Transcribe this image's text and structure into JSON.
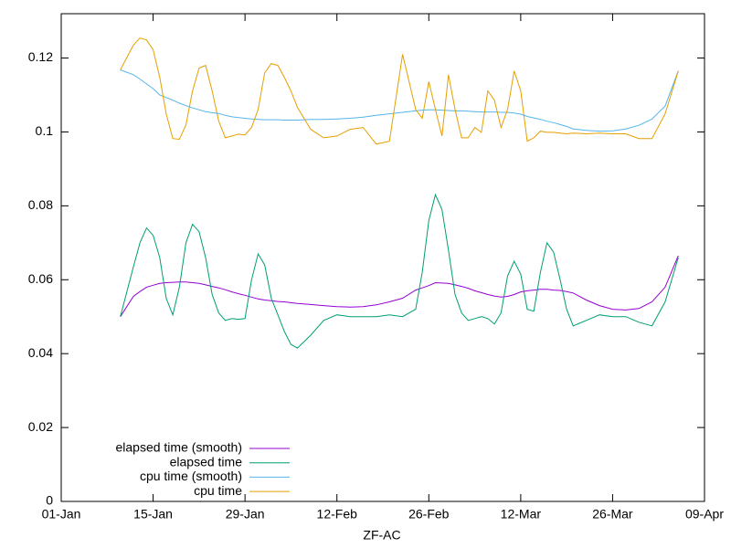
{
  "chart_data": {
    "type": "line",
    "xlabel": "ZF-AC",
    "x": [
      "10-Jan",
      "12-Jan",
      "13-Jan",
      "14-Jan",
      "15-Jan",
      "16-Jan",
      "17-Jan",
      "18-Jan",
      "19-Jan",
      "20-Jan",
      "21-Jan",
      "22-Jan",
      "23-Jan",
      "24-Jan",
      "25-Jan",
      "26-Jan",
      "27-Jan",
      "28-Jan",
      "29-Jan",
      "30-Jan",
      "31-Jan",
      "01-Feb",
      "02-Feb",
      "03-Feb",
      "04-Feb",
      "05-Feb",
      "06-Feb",
      "08-Feb",
      "10-Feb",
      "12-Feb",
      "14-Feb",
      "16-Feb",
      "18-Feb",
      "20-Feb",
      "22-Feb",
      "24-Feb",
      "25-Feb",
      "26-Feb",
      "27-Feb",
      "28-Feb",
      "01-Mar",
      "02-Mar",
      "03-Mar",
      "04-Mar",
      "05-Mar",
      "06-Mar",
      "07-Mar",
      "08-Mar",
      "09-Mar",
      "10-Mar",
      "11-Mar",
      "12-Mar",
      "13-Mar",
      "14-Mar",
      "15-Mar",
      "16-Mar",
      "17-Mar",
      "18-Mar",
      "19-Mar",
      "20-Mar",
      "22-Mar",
      "24-Mar",
      "26-Mar",
      "28-Mar",
      "30-Mar",
      "01-Apr",
      "03-Apr",
      "05-Apr"
    ],
    "series": [
      {
        "name": "elapsed time (smooth)",
        "color": "#9400d3",
        "values": [
          0.05,
          0.0555,
          0.0568,
          0.058,
          0.0585,
          0.059,
          0.0592,
          0.0593,
          0.0594,
          0.0594,
          0.0592,
          0.059,
          0.0586,
          0.0582,
          0.0578,
          0.0573,
          0.0567,
          0.0562,
          0.0558,
          0.0553,
          0.0548,
          0.0545,
          0.0543,
          0.0541,
          0.054,
          0.0538,
          0.0536,
          0.0533,
          0.053,
          0.0527,
          0.0526,
          0.0527,
          0.0532,
          0.054,
          0.055,
          0.0572,
          0.0578,
          0.0584,
          0.0592,
          0.0591,
          0.059,
          0.0586,
          0.0582,
          0.0577,
          0.057,
          0.0565,
          0.056,
          0.0556,
          0.0553,
          0.0555,
          0.056,
          0.0567,
          0.057,
          0.0572,
          0.0574,
          0.0574,
          0.0572,
          0.0571,
          0.0568,
          0.0564,
          0.0545,
          0.053,
          0.052,
          0.0518,
          0.0522,
          0.054,
          0.058,
          0.0665
        ]
      },
      {
        "name": "elapsed time",
        "color": "#009e73",
        "values": [
          0.05,
          0.0635,
          0.07,
          0.074,
          0.072,
          0.066,
          0.055,
          0.0505,
          0.058,
          0.07,
          0.075,
          0.073,
          0.066,
          0.056,
          0.051,
          0.049,
          0.0495,
          0.0493,
          0.0495,
          0.06,
          0.067,
          0.064,
          0.055,
          0.0505,
          0.046,
          0.0425,
          0.0415,
          0.045,
          0.049,
          0.0505,
          0.05,
          0.05,
          0.05,
          0.0505,
          0.05,
          0.052,
          0.062,
          0.076,
          0.083,
          0.079,
          0.068,
          0.056,
          0.051,
          0.049,
          0.0495,
          0.05,
          0.0495,
          0.048,
          0.051,
          0.061,
          0.065,
          0.0615,
          0.052,
          0.0515,
          0.062,
          0.07,
          0.0675,
          0.06,
          0.052,
          0.0475,
          0.049,
          0.0505,
          0.05,
          0.05,
          0.0485,
          0.0475,
          0.054,
          0.066
        ]
      },
      {
        "name": "cpu time (smooth)",
        "color": "#56b4e9",
        "values": [
          0.1168,
          0.1155,
          0.1143,
          0.113,
          0.1117,
          0.11,
          0.1093,
          0.1086,
          0.1078,
          0.1071,
          0.1065,
          0.106,
          0.1055,
          0.1052,
          0.105,
          0.1045,
          0.1041,
          0.1039,
          0.1037,
          0.1035,
          0.1034,
          0.1033,
          0.1033,
          0.1033,
          0.1032,
          0.1032,
          0.1032,
          0.1034,
          0.1034,
          0.1035,
          0.1037,
          0.104,
          0.1045,
          0.1049,
          0.1053,
          0.1057,
          0.1059,
          0.106,
          0.106,
          0.1059,
          0.1058,
          0.1057,
          0.1057,
          0.1056,
          0.1055,
          0.1054,
          0.1054,
          0.1054,
          0.1053,
          0.1053,
          0.1051,
          0.1048,
          0.1042,
          0.1038,
          0.1034,
          0.1029,
          0.1025,
          0.102,
          0.1015,
          0.1008,
          0.1004,
          0.1002,
          0.1003,
          0.1008,
          0.1018,
          0.1035,
          0.107,
          0.1165
        ]
      },
      {
        "name": "cpu time",
        "color": "#e69f00",
        "values": [
          0.1168,
          0.1235,
          0.1254,
          0.1249,
          0.1222,
          0.1148,
          0.1049,
          0.0982,
          0.098,
          0.1019,
          0.1111,
          0.1173,
          0.118,
          0.1111,
          0.1029,
          0.0984,
          0.0989,
          0.0994,
          0.0992,
          0.1012,
          0.1061,
          0.116,
          0.1185,
          0.118,
          0.1148,
          0.1111,
          0.1066,
          0.1007,
          0.0984,
          0.0989,
          0.1007,
          0.1012,
          0.0967,
          0.0975,
          0.121,
          0.1061,
          0.1037,
          0.1136,
          0.1061,
          0.0989,
          0.1155,
          0.1061,
          0.0984,
          0.0984,
          0.1012,
          0.0999,
          0.1111,
          0.1086,
          0.1012,
          0.1061,
          0.1165,
          0.1111,
          0.0975,
          0.0984,
          0.1002,
          0.0999,
          0.0999,
          0.0997,
          0.0995,
          0.0997,
          0.0995,
          0.0997,
          0.0995,
          0.0995,
          0.0982,
          0.0982,
          0.1049,
          0.1165
        ]
      }
    ],
    "xlim": [
      "01-Jan",
      "09-Apr"
    ],
    "xticks": [
      "01-Jan",
      "15-Jan",
      "29-Jan",
      "12-Feb",
      "26-Feb",
      "12-Mar",
      "26-Mar",
      "09-Apr"
    ],
    "ylim": [
      0,
      0.132
    ],
    "yticks": [
      0,
      0.02,
      0.04,
      0.06,
      0.08,
      0.1,
      0.12
    ],
    "grid": false,
    "legend": "lower left"
  }
}
